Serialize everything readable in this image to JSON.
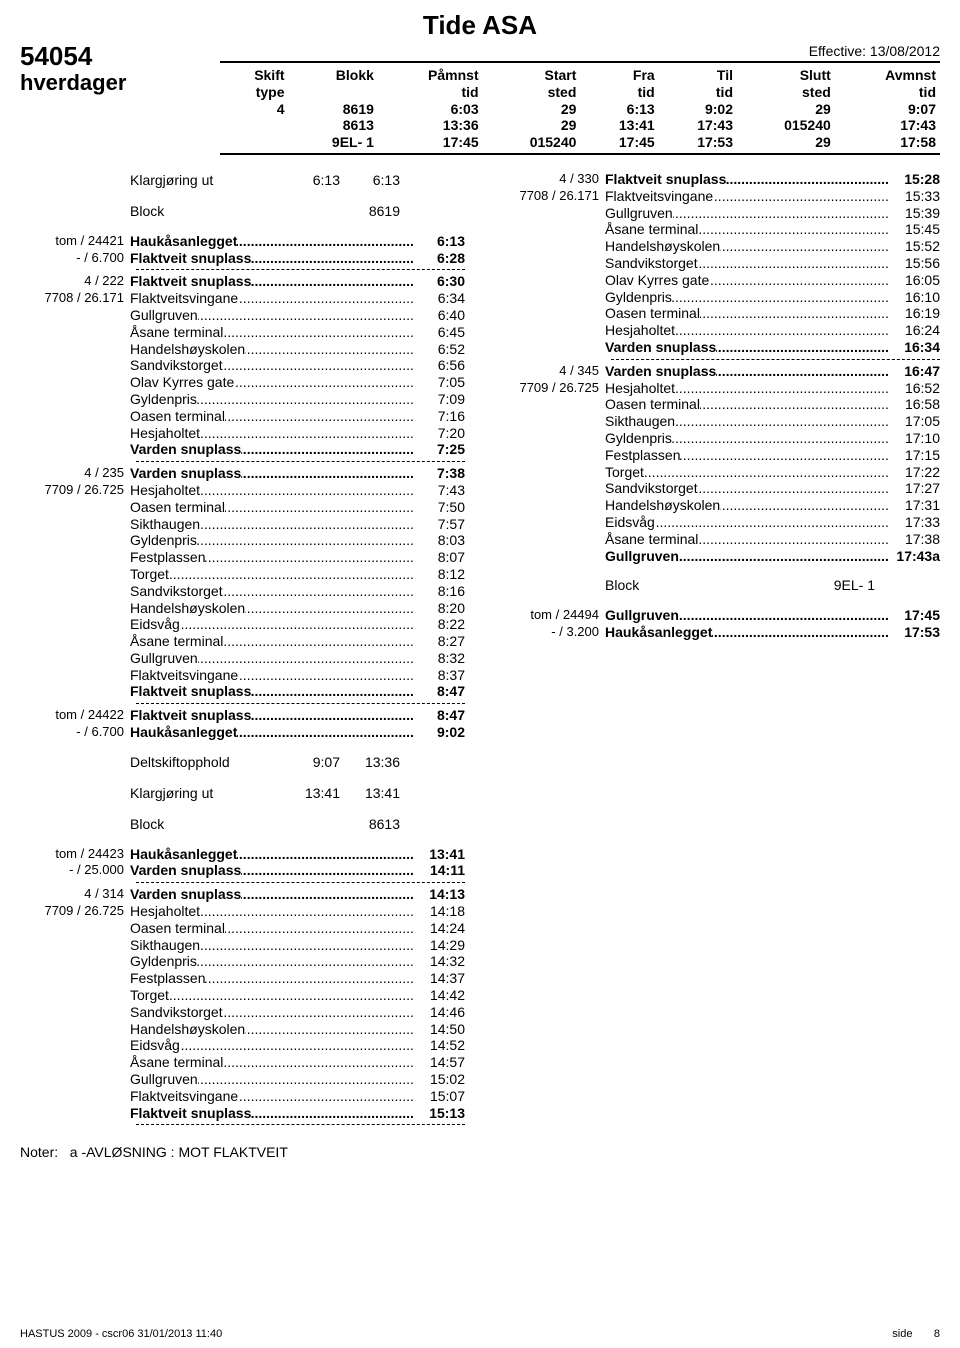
{
  "title": "Tide ASA",
  "effective": "Effective:  13/08/2012",
  "route_no": "54054",
  "day_type": "hverdager",
  "header_cols": [
    "Skift",
    "Blokk",
    "Påmnst",
    "Start",
    "Fra",
    "Til",
    "Slutt",
    "Avmnst"
  ],
  "header_sub": [
    "type",
    "",
    "tid",
    "sted",
    "tid",
    "tid",
    "sted",
    "tid"
  ],
  "block_rows": [
    [
      "4",
      "8619",
      "6:03",
      "29",
      "6:13",
      "9:02",
      "29",
      "9:07"
    ],
    [
      "",
      "8613",
      "13:36",
      "29",
      "13:41",
      "17:43",
      "015240",
      "17:43"
    ],
    [
      "",
      "9EL-  1",
      "17:45",
      "015240",
      "17:45",
      "17:53",
      "29",
      "17:58"
    ]
  ],
  "noter_label": "Noter:",
  "noter_text": "a -AVLØSNING : MOT FLAKTVEIT",
  "footer_left": "HASTUS 2009 - cscr06 31/01/2013 11:40",
  "footer_right_label": "side",
  "footer_right_num": "8",
  "col1": [
    {
      "t": "simple",
      "left": "",
      "lbl": "Klargjøring ut",
      "v1": "6:13",
      "v2": "6:13"
    },
    {
      "t": "spacer"
    },
    {
      "t": "simple",
      "left": "",
      "lbl": "Block",
      "v1": "",
      "v2": "8619"
    },
    {
      "t": "spacer"
    },
    {
      "t": "row",
      "left": "tom / 24421",
      "label": "Haukåsanlegget",
      "time": "6:13",
      "bold": true
    },
    {
      "t": "row",
      "left": "- / 6.700",
      "label": "Flaktveit snuplass",
      "time": "6:28",
      "bold": true
    },
    {
      "t": "dash"
    },
    {
      "t": "row",
      "left": "4 / 222",
      "label": "Flaktveit snuplass",
      "time": "6:30",
      "bold": true
    },
    {
      "t": "row",
      "left": "7708 / 26.171",
      "label": "Flaktveitsvingane",
      "time": "6:34",
      "bold": false
    },
    {
      "t": "row",
      "left": "",
      "label": "Gullgruven",
      "time": "6:40",
      "bold": false
    },
    {
      "t": "row",
      "left": "",
      "label": "Åsane terminal",
      "time": "6:45",
      "bold": false
    },
    {
      "t": "row",
      "left": "",
      "label": "Handelshøyskolen",
      "time": "6:52",
      "bold": false
    },
    {
      "t": "row",
      "left": "",
      "label": "Sandvikstorget",
      "time": "6:56",
      "bold": false
    },
    {
      "t": "row",
      "left": "",
      "label": "Olav Kyrres gate",
      "time": "7:05",
      "bold": false
    },
    {
      "t": "row",
      "left": "",
      "label": "Gyldenpris",
      "time": "7:09",
      "bold": false
    },
    {
      "t": "row",
      "left": "",
      "label": "Oasen terminal",
      "time": "7:16",
      "bold": false
    },
    {
      "t": "row",
      "left": "",
      "label": "Hesjaholtet",
      "time": "7:20",
      "bold": false
    },
    {
      "t": "row",
      "left": "",
      "label": "Varden snuplass",
      "time": "7:25",
      "bold": true
    },
    {
      "t": "dash"
    },
    {
      "t": "row",
      "left": "4 / 235",
      "label": "Varden snuplass",
      "time": "7:38",
      "bold": true
    },
    {
      "t": "row",
      "left": "7709 / 26.725",
      "label": "Hesjaholtet",
      "time": "7:43",
      "bold": false
    },
    {
      "t": "row",
      "left": "",
      "label": "Oasen terminal",
      "time": "7:50",
      "bold": false
    },
    {
      "t": "row",
      "left": "",
      "label": "Sikthaugen",
      "time": "7:57",
      "bold": false
    },
    {
      "t": "row",
      "left": "",
      "label": "Gyldenpris",
      "time": "8:03",
      "bold": false
    },
    {
      "t": "row",
      "left": "",
      "label": "Festplassen",
      "time": "8:07",
      "bold": false
    },
    {
      "t": "row",
      "left": "",
      "label": "Torget",
      "time": "8:12",
      "bold": false
    },
    {
      "t": "row",
      "left": "",
      "label": "Sandvikstorget",
      "time": "8:16",
      "bold": false
    },
    {
      "t": "row",
      "left": "",
      "label": "Handelshøyskolen",
      "time": "8:20",
      "bold": false
    },
    {
      "t": "row",
      "left": "",
      "label": "Eidsvåg",
      "time": "8:22",
      "bold": false
    },
    {
      "t": "row",
      "left": "",
      "label": "Åsane terminal",
      "time": "8:27",
      "bold": false
    },
    {
      "t": "row",
      "left": "",
      "label": "Gullgruven",
      "time": "8:32",
      "bold": false
    },
    {
      "t": "row",
      "left": "",
      "label": "Flaktveitsvingane",
      "time": "8:37",
      "bold": false
    },
    {
      "t": "row",
      "left": "",
      "label": "Flaktveit snuplass",
      "time": "8:47",
      "bold": true
    },
    {
      "t": "dash"
    },
    {
      "t": "row",
      "left": "tom / 24422",
      "label": "Flaktveit snuplass",
      "time": "8:47",
      "bold": true
    },
    {
      "t": "row",
      "left": "- / 6.700",
      "label": "Haukåsanlegget",
      "time": "9:02",
      "bold": true
    },
    {
      "t": "spacer"
    },
    {
      "t": "simple",
      "left": "",
      "lbl": "Deltskiftopphold",
      "v1": "9:07",
      "v2": "13:36"
    },
    {
      "t": "spacer"
    },
    {
      "t": "simple",
      "left": "",
      "lbl": "Klargjøring ut",
      "v1": "13:41",
      "v2": "13:41"
    },
    {
      "t": "spacer"
    },
    {
      "t": "simple",
      "left": "",
      "lbl": "Block",
      "v1": "",
      "v2": "8613"
    },
    {
      "t": "spacer"
    },
    {
      "t": "row",
      "left": "tom / 24423",
      "label": "Haukåsanlegget",
      "time": "13:41",
      "bold": true
    },
    {
      "t": "row",
      "left": "- / 25.000",
      "label": "Varden snuplass",
      "time": "14:11",
      "bold": true
    },
    {
      "t": "dash"
    },
    {
      "t": "row",
      "left": "4 / 314",
      "label": "Varden snuplass",
      "time": "14:13",
      "bold": true
    },
    {
      "t": "row",
      "left": "7709 / 26.725",
      "label": "Hesjaholtet",
      "time": "14:18",
      "bold": false
    },
    {
      "t": "row",
      "left": "",
      "label": "Oasen terminal",
      "time": "14:24",
      "bold": false
    },
    {
      "t": "row",
      "left": "",
      "label": "Sikthaugen",
      "time": "14:29",
      "bold": false
    },
    {
      "t": "row",
      "left": "",
      "label": "Gyldenpris",
      "time": "14:32",
      "bold": false
    },
    {
      "t": "row",
      "left": "",
      "label": "Festplassen",
      "time": "14:37",
      "bold": false
    },
    {
      "t": "row",
      "left": "",
      "label": "Torget",
      "time": "14:42",
      "bold": false
    },
    {
      "t": "row",
      "left": "",
      "label": "Sandvikstorget",
      "time": "14:46",
      "bold": false
    },
    {
      "t": "row",
      "left": "",
      "label": "Handelshøyskolen",
      "time": "14:50",
      "bold": false
    },
    {
      "t": "row",
      "left": "",
      "label": "Eidsvåg",
      "time": "14:52",
      "bold": false
    },
    {
      "t": "row",
      "left": "",
      "label": "Åsane terminal",
      "time": "14:57",
      "bold": false
    },
    {
      "t": "row",
      "left": "",
      "label": "Gullgruven",
      "time": "15:02",
      "bold": false
    },
    {
      "t": "row",
      "left": "",
      "label": "Flaktveitsvingane",
      "time": "15:07",
      "bold": false
    },
    {
      "t": "row",
      "left": "",
      "label": "Flaktveit snuplass",
      "time": "15:13",
      "bold": true
    },
    {
      "t": "dash"
    }
  ],
  "col2": [
    {
      "t": "row",
      "left": "4 / 330",
      "label": "Flaktveit snuplass",
      "time": "15:28",
      "bold": true
    },
    {
      "t": "row",
      "left": "7708 / 26.171",
      "label": "Flaktveitsvingane",
      "time": "15:33",
      "bold": false
    },
    {
      "t": "row",
      "left": "",
      "label": "Gullgruven",
      "time": "15:39",
      "bold": false
    },
    {
      "t": "row",
      "left": "",
      "label": "Åsane terminal",
      "time": "15:45",
      "bold": false
    },
    {
      "t": "row",
      "left": "",
      "label": "Handelshøyskolen",
      "time": "15:52",
      "bold": false
    },
    {
      "t": "row",
      "left": "",
      "label": "Sandvikstorget",
      "time": "15:56",
      "bold": false
    },
    {
      "t": "row",
      "left": "",
      "label": "Olav Kyrres gate",
      "time": "16:05",
      "bold": false
    },
    {
      "t": "row",
      "left": "",
      "label": "Gyldenpris",
      "time": "16:10",
      "bold": false
    },
    {
      "t": "row",
      "left": "",
      "label": "Oasen terminal",
      "time": "16:19",
      "bold": false
    },
    {
      "t": "row",
      "left": "",
      "label": "Hesjaholtet",
      "time": "16:24",
      "bold": false
    },
    {
      "t": "row",
      "left": "",
      "label": "Varden snuplass",
      "time": "16:34",
      "bold": true
    },
    {
      "t": "dash"
    },
    {
      "t": "row",
      "left": "4 / 345",
      "label": "Varden snuplass",
      "time": "16:47",
      "bold": true
    },
    {
      "t": "row",
      "left": "7709 / 26.725",
      "label": "Hesjaholtet",
      "time": "16:52",
      "bold": false
    },
    {
      "t": "row",
      "left": "",
      "label": "Oasen terminal",
      "time": "16:58",
      "bold": false
    },
    {
      "t": "row",
      "left": "",
      "label": "Sikthaugen",
      "time": "17:05",
      "bold": false
    },
    {
      "t": "row",
      "left": "",
      "label": "Gyldenpris",
      "time": "17:10",
      "bold": false
    },
    {
      "t": "row",
      "left": "",
      "label": "Festplassen",
      "time": "17:15",
      "bold": false
    },
    {
      "t": "row",
      "left": "",
      "label": "Torget",
      "time": "17:22",
      "bold": false
    },
    {
      "t": "row",
      "left": "",
      "label": "Sandvikstorget",
      "time": "17:27",
      "bold": false
    },
    {
      "t": "row",
      "left": "",
      "label": "Handelshøyskolen",
      "time": "17:31",
      "bold": false
    },
    {
      "t": "row",
      "left": "",
      "label": "Eidsvåg",
      "time": "17:33",
      "bold": false
    },
    {
      "t": "row",
      "left": "",
      "label": "Åsane terminal",
      "time": "17:38",
      "bold": false
    },
    {
      "t": "row",
      "left": "",
      "label": "Gullgruven",
      "time": "17:43a",
      "bold": true
    },
    {
      "t": "spacer"
    },
    {
      "t": "simple",
      "left": "",
      "lbl": "Block",
      "v1": "",
      "v2": "9EL-  1"
    },
    {
      "t": "spacer"
    },
    {
      "t": "row",
      "left": "tom / 24494",
      "label": "Gullgruven",
      "time": "17:45",
      "bold": true
    },
    {
      "t": "row",
      "left": "- / 3.200",
      "label": "Haukåsanlegget",
      "time": "17:53",
      "bold": true
    }
  ]
}
